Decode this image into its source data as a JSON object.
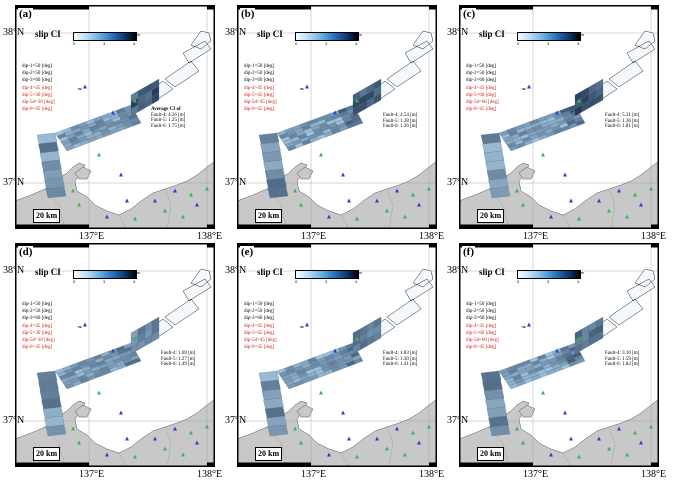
{
  "axis": {
    "lat_top": "38°N",
    "lat_bottom": "37°N",
    "lon_left": "137°E",
    "lon_right": "138°E"
  },
  "colorbar": {
    "title": "slip CI",
    "unit": "m",
    "ticks": [
      "0",
      "3",
      "4"
    ]
  },
  "scale_label": "20 km",
  "colors": {
    "land": "#c8c8c8",
    "sea": "#ffffff",
    "fault_dark": "#0a1d3a",
    "fault_light": "#a9d3f1",
    "dip_red": "#d21a12",
    "station_blue": "#2046d8",
    "station_green": "#3fb34a"
  },
  "panels": [
    {
      "label": "(a)",
      "dips": [
        {
          "text": "dip-1=50 [deg]",
          "color": "black"
        },
        {
          "text": "dip-2=50 [deg]",
          "color": "black"
        },
        {
          "text": "dip-3=60 [deg]",
          "color": "black"
        },
        {
          "text": "dip-4=45 [deg]",
          "color": "red"
        },
        {
          "text": "dip-5=30 [deg]",
          "color": "red"
        },
        {
          "text": "dip-5d=30 [deg]",
          "color": "red"
        },
        {
          "text": "dip-6=45 [deg]",
          "color": "red"
        }
      ],
      "ci_title": "Average CI of",
      "ci_lines": [
        "Fault-4: 4.26 [m]",
        "Fault-5: 1.25 [m]",
        "Fault-6: 1.75 [m]"
      ]
    },
    {
      "label": "(b)",
      "dips": [
        {
          "text": "dip-1=50 [deg]",
          "color": "black"
        },
        {
          "text": "dip-2=50 [deg]",
          "color": "black"
        },
        {
          "text": "dip-3=60 [deg]",
          "color": "black"
        },
        {
          "text": "dip-4=45 [deg]",
          "color": "red"
        },
        {
          "text": "dip-5=45 [deg]",
          "color": "red"
        },
        {
          "text": "dip-5d=45 [deg]",
          "color": "red"
        },
        {
          "text": "dip-6=45 [deg]",
          "color": "red"
        }
      ],
      "ci_title": "",
      "ci_lines": [
        "Fault-4: 4.54 [m]",
        "Fault-5: 1.28 [m]",
        "Fault-6: 1.26 [m]"
      ]
    },
    {
      "label": "(c)",
      "dips": [
        {
          "text": "dip-1=50 [deg]",
          "color": "black"
        },
        {
          "text": "dip-2=50 [deg]",
          "color": "black"
        },
        {
          "text": "dip-3=60 [deg]",
          "color": "black"
        },
        {
          "text": "dip-4=45 [deg]",
          "color": "red"
        },
        {
          "text": "dip-5=60 [deg]",
          "color": "red"
        },
        {
          "text": "dip-5d=60 [deg]",
          "color": "red"
        },
        {
          "text": "dip-6=45 [deg]",
          "color": "red"
        }
      ],
      "ci_title": "",
      "ci_lines": [
        "Fault-4: 5.31 [m]",
        "Fault-5: 1.36 [m]",
        "Fault-6: 1.81 [m]"
      ]
    },
    {
      "label": "(d)",
      "dips": [
        {
          "text": "dip-1=50 [deg]",
          "color": "black"
        },
        {
          "text": "dip-2=50 [deg]",
          "color": "black"
        },
        {
          "text": "dip-3=60 [deg]",
          "color": "black"
        },
        {
          "text": "dip-4=45 [deg]",
          "color": "red"
        },
        {
          "text": "dip-5=30 [deg]",
          "color": "red"
        },
        {
          "text": "dip-5d=30 [deg]",
          "color": "red"
        },
        {
          "text": "dip-6=45 [deg]",
          "color": "red"
        }
      ],
      "ci_title": "",
      "ci_lines": [
        "Fault-4: 1.69 [m]",
        "Fault-5: 1.27 [m]",
        "Fault-6: 1.49 [m]"
      ]
    },
    {
      "label": "(e)",
      "dips": [
        {
          "text": "dip-1=50 [deg]",
          "color": "black"
        },
        {
          "text": "dip-2=50 [deg]",
          "color": "black"
        },
        {
          "text": "dip-3=60 [deg]",
          "color": "black"
        },
        {
          "text": "dip-4=45 [deg]",
          "color": "red"
        },
        {
          "text": "dip-5=45 [deg]",
          "color": "red"
        },
        {
          "text": "dip-5d=45 [deg]",
          "color": "red"
        },
        {
          "text": "dip-6=45 [deg]",
          "color": "red"
        }
      ],
      "ci_title": "",
      "ci_lines": [
        "Fault-4: 1.83 [m]",
        "Fault-5: 1.30 [m]",
        "Fault-6: 1.41 [m]"
      ]
    },
    {
      "label": "(f)",
      "dips": [
        {
          "text": "dip-1=50 [deg]",
          "color": "black"
        },
        {
          "text": "dip-2=50 [deg]",
          "color": "black"
        },
        {
          "text": "dip-3=60 [deg]",
          "color": "black"
        },
        {
          "text": "dip-4=45 [deg]",
          "color": "red"
        },
        {
          "text": "dip-5=60 [deg]",
          "color": "red"
        },
        {
          "text": "dip-5d=60 [deg]",
          "color": "red"
        },
        {
          "text": "dip-6=45 [deg]",
          "color": "red"
        }
      ],
      "ci_title": "",
      "ci_lines": [
        "Fault-4: 3.10 [m]",
        "Fault-5: 1.59 [m]",
        "Fault-6: 1.82 [m]"
      ]
    }
  ]
}
